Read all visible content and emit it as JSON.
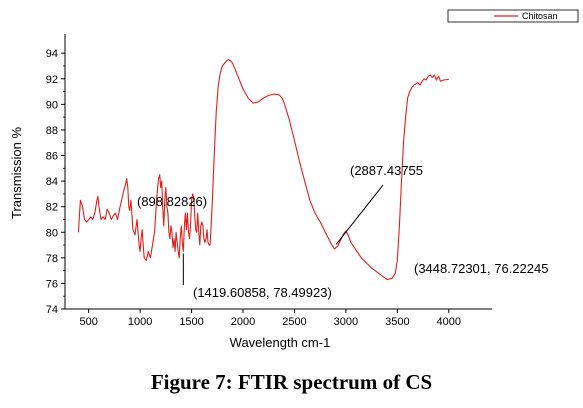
{
  "caption": "Figure 7: FTIR spectrum of CS",
  "chart_data": {
    "type": "line",
    "xlabel": "Wavelength cm-1",
    "ylabel": "Transmission %",
    "xlim": [
      270,
      4420
    ],
    "ylim": [
      74,
      95.5
    ],
    "xticks": [
      500,
      1000,
      1500,
      2000,
      2500,
      3000,
      3500,
      4000
    ],
    "yticks": [
      74,
      76,
      78,
      80,
      82,
      84,
      86,
      88,
      90,
      92,
      94
    ],
    "grid": false,
    "legend": {
      "placement": "top-right",
      "entries": [
        "Chitosan"
      ]
    },
    "series": [
      {
        "name": "Chitosan",
        "color": "#e0201b",
        "x": [
          400,
          420,
          440,
          460,
          480,
          500,
          520,
          540,
          560,
          580,
          590,
          600,
          620,
          640,
          660,
          680,
          700,
          720,
          740,
          760,
          780,
          800,
          820,
          840,
          860,
          870,
          880,
          890,
          899,
          910,
          920,
          930,
          950,
          970,
          990,
          1000,
          1010,
          1020,
          1030,
          1040,
          1060,
          1080,
          1100,
          1120,
          1140,
          1160,
          1170,
          1180,
          1190,
          1200,
          1210,
          1220,
          1230,
          1240,
          1250,
          1260,
          1270,
          1280,
          1290,
          1300,
          1310,
          1320,
          1330,
          1340,
          1350,
          1360,
          1370,
          1380,
          1390,
          1400,
          1410,
          1420,
          1430,
          1440,
          1450,
          1460,
          1470,
          1480,
          1490,
          1500,
          1510,
          1520,
          1530,
          1540,
          1550,
          1560,
          1570,
          1580,
          1590,
          1600,
          1610,
          1620,
          1630,
          1640,
          1650,
          1660,
          1670,
          1680,
          1690,
          1700,
          1720,
          1740,
          1760,
          1780,
          1800,
          1820,
          1840,
          1860,
          1880,
          1900,
          1920,
          1950,
          2000,
          2050,
          2100,
          2150,
          2200,
          2250,
          2300,
          2350,
          2380,
          2400,
          2450,
          2500,
          2550,
          2600,
          2650,
          2700,
          2750,
          2800,
          2850,
          2887,
          2920,
          2950,
          2980,
          3000,
          3020,
          3050,
          3100,
          3150,
          3200,
          3250,
          3300,
          3350,
          3400,
          3449,
          3480,
          3500,
          3520,
          3540,
          3560,
          3580,
          3600,
          3620,
          3640,
          3660,
          3680,
          3700,
          3720,
          3740,
          3760,
          3780,
          3800,
          3820,
          3840,
          3860,
          3880,
          3900,
          3920,
          3950,
          4000
        ],
        "y": [
          80.0,
          82.5,
          82.0,
          81.0,
          80.8,
          81.0,
          81.2,
          81.0,
          81.5,
          82.5,
          82.8,
          82.0,
          81.0,
          81.2,
          81.0,
          81.8,
          81.5,
          81.0,
          81.3,
          81.5,
          81.0,
          81.8,
          82.5,
          83.2,
          83.8,
          84.2,
          83.5,
          82.0,
          81.7,
          82.5,
          81.5,
          80.2,
          79.8,
          81.0,
          79.0,
          78.5,
          79.5,
          80.2,
          79.0,
          78.0,
          77.8,
          78.5,
          78.0,
          79.0,
          80.0,
          82.5,
          83.5,
          84.2,
          84.5,
          83.5,
          84.0,
          82.0,
          80.5,
          82.5,
          83.5,
          82.0,
          81.5,
          80.0,
          79.5,
          80.5,
          80.0,
          78.8,
          79.5,
          78.5,
          80.0,
          79.2,
          78.5,
          78.0,
          79.5,
          80.5,
          79.2,
          78.5,
          80.5,
          81.5,
          80.2,
          81.5,
          80.0,
          79.5,
          80.5,
          82.5,
          83.0,
          82.8,
          81.5,
          80.2,
          80.0,
          81.5,
          80.0,
          79.0,
          80.5,
          80.8,
          80.5,
          79.5,
          79.2,
          79.5,
          80.2,
          79.2,
          79.0,
          79.0,
          80.5,
          82.0,
          86.0,
          89.5,
          91.5,
          92.5,
          93.0,
          93.2,
          93.4,
          93.5,
          93.4,
          93.2,
          92.8,
          92.2,
          91.2,
          90.5,
          90.1,
          90.2,
          90.5,
          90.7,
          90.8,
          90.75,
          90.5,
          90.1,
          88.8,
          87.2,
          85.5,
          84.0,
          82.5,
          81.5,
          80.8,
          80.0,
          79.2,
          78.7,
          78.9,
          79.4,
          79.9,
          80.1,
          79.8,
          79.2,
          78.6,
          78.0,
          77.6,
          77.2,
          76.9,
          76.6,
          76.3,
          76.4,
          76.8,
          77.8,
          80.5,
          84.0,
          87.0,
          89.0,
          90.5,
          91.0,
          91.3,
          91.5,
          91.6,
          91.7,
          91.5,
          91.8,
          92.0,
          91.9,
          92.2,
          92.3,
          92.1,
          92.3,
          91.9,
          92.2,
          91.8,
          91.9,
          91.95
        ]
      }
    ],
    "annotations": [
      {
        "text": "(898.82826)",
        "x": 899,
        "y": 81.8
      },
      {
        "text": "(1419.60858, 78.49923)",
        "x": 1420,
        "y": 78.5
      },
      {
        "text": "(2887.43755",
        "x": 2887,
        "y": 78.9
      },
      {
        "text": "(3448.72301, 76.22245",
        "x": 3449,
        "y": 76.2
      }
    ]
  }
}
